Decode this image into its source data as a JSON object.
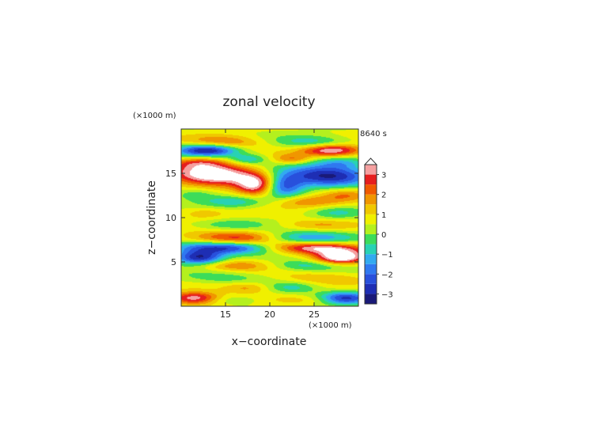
{
  "chart_data": {
    "type": "heatmap",
    "title": "zonal velocity",
    "xlabel": "x−coordinate",
    "ylabel": "z−coordinate",
    "x_unit": "(×1000 m)",
    "y_unit": "(×1000 m)",
    "time_label": "8640 s",
    "xlim": [
      10,
      30
    ],
    "ylim": [
      0,
      20
    ],
    "x_ticks": [
      "15",
      "20",
      "25"
    ],
    "y_ticks": [
      "5",
      "10",
      "15"
    ],
    "colorbar_ticks": [
      "3",
      "2",
      "1",
      "0",
      "−1",
      "−2",
      "−3"
    ],
    "colorbar_range": [
      -3.5,
      3.5
    ],
    "colorbar_levels": [
      {
        "lo": -3.5,
        "hi": -3.0,
        "color": "#1a1a78"
      },
      {
        "lo": -3.0,
        "hi": -2.5,
        "color": "#1e2eb4"
      },
      {
        "lo": -2.5,
        "hi": -2.0,
        "color": "#2850dc"
      },
      {
        "lo": -2.0,
        "hi": -1.5,
        "color": "#2f78f0"
      },
      {
        "lo": -1.5,
        "hi": -1.0,
        "color": "#32aaf0"
      },
      {
        "lo": -1.0,
        "hi": -0.5,
        "color": "#28d2b4"
      },
      {
        "lo": -0.5,
        "hi": 0.0,
        "color": "#3cdc5a"
      },
      {
        "lo": 0.0,
        "hi": 0.5,
        "color": "#b4f01e"
      },
      {
        "lo": 0.5,
        "hi": 1.0,
        "color": "#f0f000"
      },
      {
        "lo": 1.0,
        "hi": 1.5,
        "color": "#f0c800"
      },
      {
        "lo": 1.5,
        "hi": 2.0,
        "color": "#f09600"
      },
      {
        "lo": 2.0,
        "hi": 2.5,
        "color": "#f05a00"
      },
      {
        "lo": 2.5,
        "hi": 3.0,
        "color": "#e61e1e"
      },
      {
        "lo": 3.0,
        "hi": 3.5,
        "color": "#f5a0a0"
      }
    ],
    "colors": {
      "above_max": "#ffffff",
      "below_min": "#ffffff"
    }
  }
}
